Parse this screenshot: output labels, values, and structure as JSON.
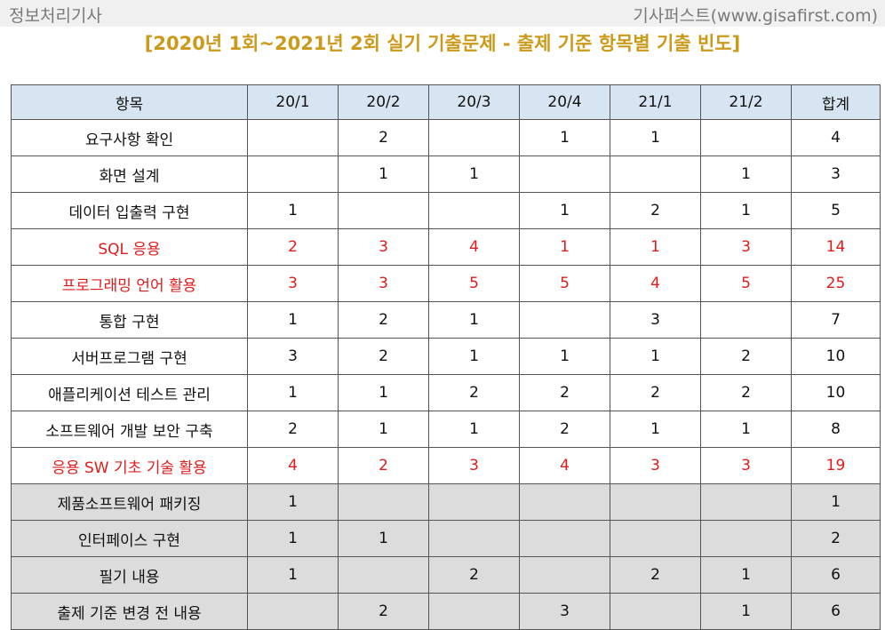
{
  "header": {
    "left_label": "정보처리기사",
    "right_label": "기사퍼스트(www.gisafirst.com)"
  },
  "title": "[2020년 1회~2021년 2회 실기 기출문제 - 출제 기준 항목별 기출 빈도]",
  "table": {
    "columns": [
      "항목",
      "20/1",
      "20/2",
      "20/3",
      "20/4",
      "21/1",
      "21/2",
      "합계"
    ],
    "rows": [
      {
        "cells": [
          "요구사항 확인",
          "",
          "2",
          "",
          "1",
          "1",
          "",
          "4"
        ],
        "highlight": false,
        "shaded": false
      },
      {
        "cells": [
          "화면 설계",
          "",
          "1",
          "1",
          "",
          "",
          "1",
          "3"
        ],
        "highlight": false,
        "shaded": false
      },
      {
        "cells": [
          "데이터 입출력 구현",
          "1",
          "",
          "",
          "1",
          "2",
          "1",
          "5"
        ],
        "highlight": false,
        "shaded": false
      },
      {
        "cells": [
          "SQL 응용",
          "2",
          "3",
          "4",
          "1",
          "1",
          "3",
          "14"
        ],
        "highlight": true,
        "shaded": false
      },
      {
        "cells": [
          "프로그래밍 언어 활용",
          "3",
          "3",
          "5",
          "5",
          "4",
          "5",
          "25"
        ],
        "highlight": true,
        "shaded": false
      },
      {
        "cells": [
          "통합 구현",
          "1",
          "2",
          "1",
          "",
          "3",
          "",
          "7"
        ],
        "highlight": false,
        "shaded": false
      },
      {
        "cells": [
          "서버프로그램 구현",
          "3",
          "2",
          "1",
          "1",
          "1",
          "2",
          "10"
        ],
        "highlight": false,
        "shaded": false
      },
      {
        "cells": [
          "애플리케이션 테스트 관리",
          "1",
          "1",
          "2",
          "2",
          "2",
          "2",
          "10"
        ],
        "highlight": false,
        "shaded": false
      },
      {
        "cells": [
          "소프트웨어 개발 보안 구축",
          "2",
          "1",
          "1",
          "2",
          "1",
          "1",
          "8"
        ],
        "highlight": false,
        "shaded": false
      },
      {
        "cells": [
          "응용 SW 기초 기술 활용",
          "4",
          "2",
          "3",
          "4",
          "3",
          "3",
          "19"
        ],
        "highlight": true,
        "shaded": false
      },
      {
        "cells": [
          "제품소프트웨어 패키징",
          "1",
          "",
          "",
          "",
          "",
          "",
          "1"
        ],
        "highlight": false,
        "shaded": true
      },
      {
        "cells": [
          "인터페이스 구현",
          "1",
          "1",
          "",
          "",
          "",
          "",
          "2"
        ],
        "highlight": false,
        "shaded": true
      },
      {
        "cells": [
          "필기 내용",
          "1",
          "",
          "2",
          "",
          "2",
          "1",
          "6"
        ],
        "highlight": false,
        "shaded": true
      },
      {
        "cells": [
          "출제 기준 변경 전 내용",
          "",
          "2",
          "",
          "3",
          "",
          "1",
          "6"
        ],
        "highlight": false,
        "shaded": true
      }
    ]
  },
  "colors": {
    "title": "#cc9a1a",
    "highlight_text": "#e01b1b",
    "header_bg": "#d6e5f1",
    "shaded_bg": "#dcdcdc"
  }
}
